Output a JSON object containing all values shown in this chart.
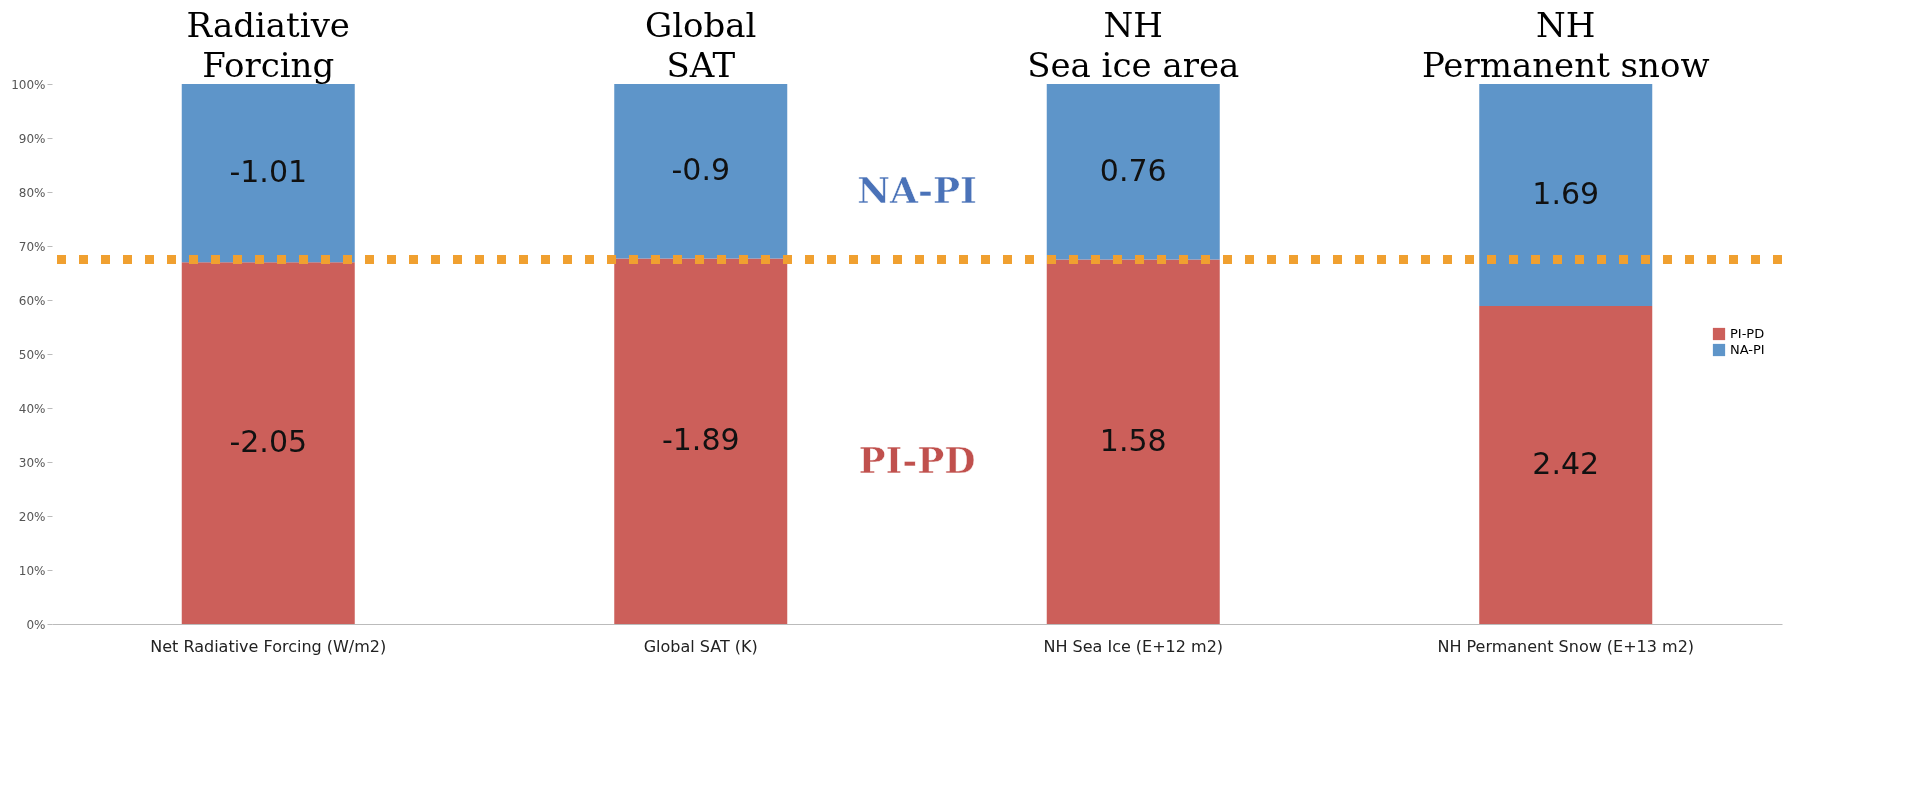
{
  "chart_data": {
    "type": "bar",
    "stacked": true,
    "categories": [
      "Net Radiative Forcing (W/m2)",
      "Global SAT (K)",
      "NH Sea Ice (E+12 m2)",
      "NH Permanent Snow (E+13 m2)"
    ],
    "series": [
      {
        "name": "PI-PD",
        "color": "#cc5f5a",
        "values": [
          67.0,
          67.7,
          67.5,
          58.9
        ]
      },
      {
        "name": "NA-PI",
        "color": "#5e95c9",
        "values": [
          33.0,
          32.3,
          32.5,
          41.1
        ]
      }
    ],
    "ylim": [
      0,
      100
    ],
    "yticks": [
      {
        "value": 0,
        "label": "0%"
      },
      {
        "value": 10,
        "label": "10%"
      },
      {
        "value": 20,
        "label": "20%"
      },
      {
        "value": 30,
        "label": "30%"
      },
      {
        "value": 40,
        "label": "40%"
      },
      {
        "value": 50,
        "label": "50%"
      },
      {
        "value": 60,
        "label": "60%"
      },
      {
        "value": 70,
        "label": "70%"
      },
      {
        "value": 80,
        "label": "80%"
      },
      {
        "value": 90,
        "label": "90%"
      },
      {
        "value": 100,
        "label": "100%"
      }
    ],
    "ref_lines": [
      {
        "axis": "y",
        "value": 67.5,
        "color": "#f0a030",
        "line_style": "dotted"
      }
    ],
    "annotations": [
      "Radiative\nForcing",
      "Global\nSAT",
      "NH\nSea ice area",
      "NH\nPermanent snow",
      "NA-PI",
      "PI-PD",
      "-2.05",
      "-1.89",
      "1.58",
      "2.42",
      "-1.01",
      "-0.9",
      "0.76",
      "1.69"
    ],
    "grid": false,
    "legend": "right"
  }
}
